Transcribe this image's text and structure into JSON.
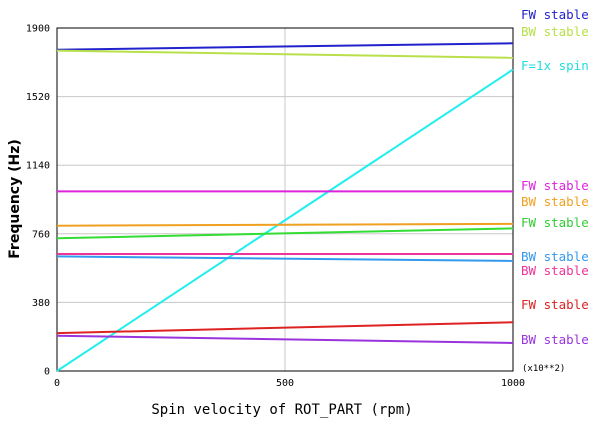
{
  "chart_data": {
    "type": "line",
    "xlabel": "Spin velocity of ROT_PART (rpm)",
    "ylabel": "Frequency (Hz)",
    "x_multiplier": "(x10**2)",
    "xlim": [
      0,
      1000
    ],
    "ylim": [
      0,
      1900
    ],
    "xticks": [
      "0",
      "500",
      "1000"
    ],
    "yticks": [
      "0",
      "380",
      "760",
      "1140",
      "1520",
      "1900"
    ],
    "x": [
      0,
      1000
    ],
    "series": [
      {
        "name": "FW stable",
        "color": "#2222cc",
        "values": [
          1780,
          1815
        ]
      },
      {
        "name": "BW stable",
        "color": "#b8e04a",
        "values": [
          1775,
          1735
        ]
      },
      {
        "name": "F=1x spin",
        "color": "#22eeee",
        "values": [
          0,
          1670
        ]
      },
      {
        "name": "FW stable",
        "color": "#dd22dd",
        "values": [
          995,
          995
        ]
      },
      {
        "name": "BW stable",
        "color": "#f0a020",
        "values": [
          805,
          815
        ]
      },
      {
        "name": "FW stable",
        "color": "#33dd33",
        "values": [
          735,
          790
        ]
      },
      {
        "name": "BW stable",
        "color": "#3399ee",
        "values": [
          635,
          610
        ]
      },
      {
        "name": "BW stable",
        "color": "#ee3399",
        "values": [
          648,
          648
        ]
      },
      {
        "name": "FW stable",
        "color": "#dd2222",
        "values": [
          210,
          270
        ]
      },
      {
        "name": "BW stable",
        "color": "#9933dd",
        "values": [
          195,
          155
        ]
      }
    ]
  },
  "legend": [
    {
      "label": "FW stable",
      "color": "#2222cc"
    },
    {
      "label": "BW stable",
      "color": "#b8e04a"
    },
    {
      "label": "F=1x spin",
      "color": "#22dddd"
    },
    {
      "label": "FW stable",
      "color": "#dd22dd"
    },
    {
      "label": "BW stable",
      "color": "#f0a020"
    },
    {
      "label": "FW stable",
      "color": "#33cc33"
    },
    {
      "label": "BW stable",
      "color": "#3399ee"
    },
    {
      "label": "BW stable",
      "color": "#ee3399"
    },
    {
      "label": "FW stable",
      "color": "#dd2222"
    },
    {
      "label": "BW stable",
      "color": "#9933dd"
    }
  ]
}
